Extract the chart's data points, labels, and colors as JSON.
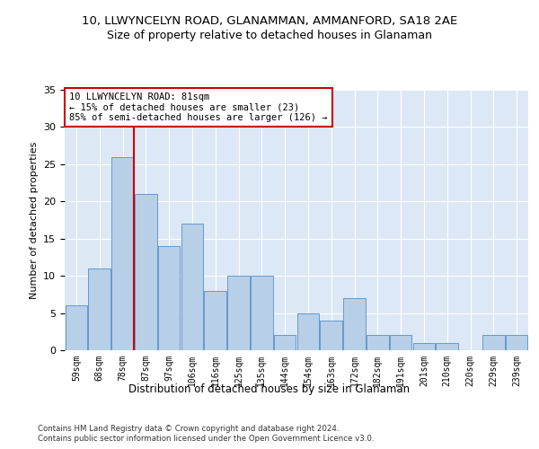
{
  "title": "10, LLWYNCELYN ROAD, GLANAMMAN, AMMANFORD, SA18 2AE",
  "subtitle": "Size of property relative to detached houses in Glanaman",
  "xlabel": "Distribution of detached houses by size in Glanaman",
  "ylabel": "Number of detached properties",
  "bar_values": [
    6,
    11,
    26,
    21,
    14,
    17,
    8,
    10,
    10,
    2,
    5,
    4,
    7,
    2,
    2,
    1,
    1,
    0,
    2,
    2
  ],
  "bar_labels": [
    "59sqm",
    "68sqm",
    "78sqm",
    "87sqm",
    "97sqm",
    "106sqm",
    "116sqm",
    "125sqm",
    "135sqm",
    "144sqm",
    "154sqm",
    "163sqm",
    "172sqm",
    "182sqm",
    "191sqm",
    "201sqm",
    "210sqm",
    "220sqm",
    "229sqm",
    "239sqm"
  ],
  "bar_color": "#b8cfe8",
  "bar_edge_color": "#6699cc",
  "vline_x_index": 2,
  "vline_color": "#cc0000",
  "annotation_box_text": "10 LLWYNCELYN ROAD: 81sqm\n← 15% of detached houses are smaller (23)\n85% of semi-detached houses are larger (126) →",
  "ylim": [
    0,
    35
  ],
  "yticks": [
    0,
    5,
    10,
    15,
    20,
    25,
    30,
    35
  ],
  "bg_color": "#dce8f5",
  "grid_color": "#ffffff",
  "footer_line1": "Contains HM Land Registry data © Crown copyright and database right 2024.",
  "footer_line2": "Contains public sector information licensed under the Open Government Licence v3.0."
}
